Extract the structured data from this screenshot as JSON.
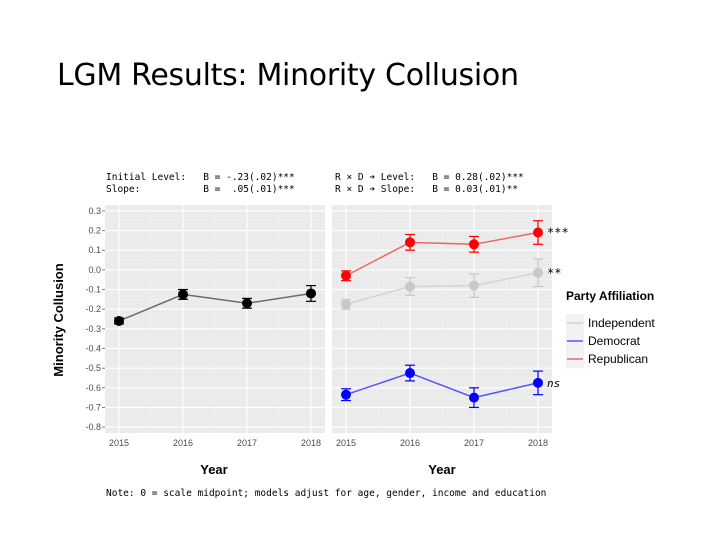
{
  "slide": {
    "title": "LGM Results: Minority Collusion",
    "stats_left_line1": "Initial Level:   B = -.23(.02)***",
    "stats_left_line2": "Slope:           B =  .05(.01)***",
    "stats_right_line1": "R × D ➔ Level:   B = 0.28(.02)***",
    "stats_right_line2": "R × D ➔ Slope:   B = 0.03(.01)**",
    "note": "Note: 0 = scale midpoint; models adjust for age, gender, income and education"
  },
  "chart_data": [
    {
      "type": "line",
      "panel": "left",
      "x": [
        "2015",
        "2016",
        "2017",
        "2018"
      ],
      "ylabel": "Minority Collusion",
      "xlabel": "Year",
      "ylim": [
        -0.83,
        0.33
      ],
      "yticks": [
        "0.3",
        "0.2",
        "0.1",
        "0.0",
        "-0.1",
        "-0.2",
        "-0.3",
        "-0.4",
        "-0.5",
        "-0.6",
        "-0.7",
        "-0.8"
      ],
      "grid": true,
      "series": [
        {
          "color": "#000000",
          "line_color": "#6b6b6b",
          "values": [
            -0.26,
            -0.125,
            -0.17,
            -0.12
          ],
          "err": [
            0.015,
            0.025,
            0.025,
            0.04
          ]
        }
      ]
    },
    {
      "type": "line",
      "panel": "right",
      "x": [
        "2015",
        "2016",
        "2017",
        "2018"
      ],
      "xlabel": "Year",
      "ylim": [
        -0.83,
        0.33
      ],
      "grid": true,
      "legend": {
        "title": "Party Affiliation",
        "position": "right"
      },
      "series": [
        {
          "name": "Independent",
          "color": "#c8c8c8",
          "line_color": "#d3d3d3",
          "values": [
            -0.175,
            -0.085,
            -0.08,
            -0.015
          ],
          "err": [
            0.025,
            0.045,
            0.06,
            0.07
          ],
          "significance": "**"
        },
        {
          "name": "Democrat",
          "color": "#0000ff",
          "line_color": "#5555ff",
          "values": [
            -0.635,
            -0.525,
            -0.65,
            -0.575
          ],
          "err": [
            0.03,
            0.04,
            0.05,
            0.06
          ],
          "significance": "ns"
        },
        {
          "name": "Republican",
          "color": "#ff0000",
          "line_color": "#ee6666",
          "values": [
            -0.03,
            0.14,
            0.13,
            0.19
          ],
          "err": [
            0.025,
            0.04,
            0.04,
            0.06
          ],
          "significance": "***"
        }
      ]
    }
  ]
}
